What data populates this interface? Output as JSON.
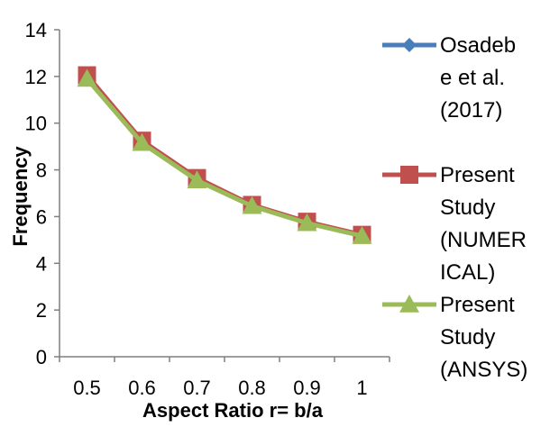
{
  "chart_data": {
    "type": "line",
    "title": "",
    "xlabel": "Aspect Ratio r= b/a",
    "ylabel": "Frequency",
    "x": [
      0.5,
      0.6,
      0.7,
      0.8,
      0.9,
      1
    ],
    "x_tick_labels": [
      "0.5",
      "0.6",
      "0.7",
      "0.8",
      "0.9",
      "1"
    ],
    "ylim": [
      0,
      14
    ],
    "y_ticks": [
      0,
      2,
      4,
      6,
      8,
      10,
      12,
      14
    ],
    "grid": false,
    "legend_position": "right",
    "series": [
      {
        "name": "Osadebe et al. (2017)",
        "legend_lines": [
          "Osadeb",
          "e et al.",
          "(2017)"
        ],
        "values": [
          11.95,
          9.2,
          7.6,
          6.45,
          5.75,
          5.2
        ],
        "color": "#4a7ebb",
        "marker": "diamond"
      },
      {
        "name": "Present Study (NUMERICAL)",
        "legend_lines": [
          "Present",
          "Study",
          "(NUMER",
          "ICAL)"
        ],
        "values": [
          12.05,
          9.25,
          7.65,
          6.5,
          5.78,
          5.22
        ],
        "color": "#c0504d",
        "marker": "square"
      },
      {
        "name": "Present Study (ANSYS)",
        "legend_lines": [
          "Present",
          "Study",
          "(ANSYS)"
        ],
        "values": [
          11.9,
          9.15,
          7.55,
          6.45,
          5.72,
          5.17
        ],
        "color": "#9bbb59",
        "marker": "triangle"
      }
    ]
  }
}
